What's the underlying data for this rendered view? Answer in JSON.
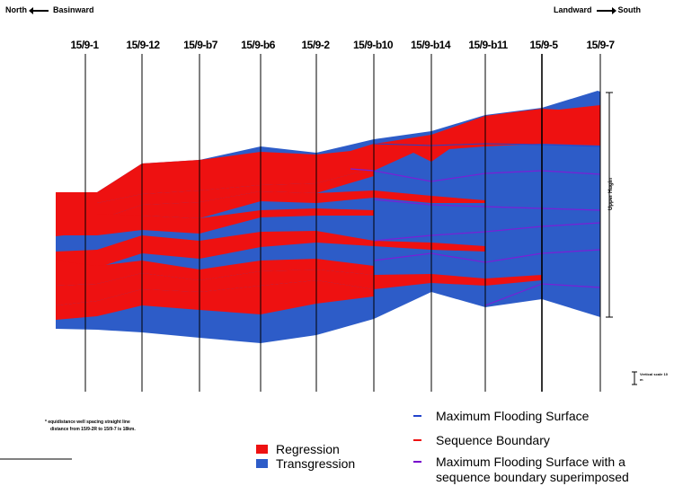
{
  "header": {
    "left_dir": "North",
    "left_label": "Basinward",
    "right_label": "Landward",
    "right_dir": "South"
  },
  "wells": [
    "15/9-1",
    "15/9-12",
    "15/9-b7",
    "15/9-b6",
    "15/9-2",
    "15/9-b10",
    "15/9-b14",
    "15/9-b11",
    "15/9-5",
    "15/9-7"
  ],
  "section_label": "Upper Hugin",
  "scale": {
    "label": "Vertical scale 10 m"
  },
  "note": {
    "line1": "* equidistance well spacing straight line",
    "line2": "distance from 15/9-2R to 15/9-7 is 18km."
  },
  "legend_fill": [
    {
      "label": "Regression",
      "color": "#ee1111"
    },
    {
      "label": "Transgression",
      "color": "#2d5cc8"
    }
  ],
  "legend_lines": [
    {
      "label": "Maximum Flooding Surface",
      "color": "#2244cc"
    },
    {
      "label": "Sequence Boundary",
      "color": "#ee1111"
    },
    {
      "label": "Maximum Flooding Surface with a",
      "color": "#7700cc"
    },
    {
      "label": "sequence boundary superimposed",
      "color": ""
    }
  ],
  "colors": {
    "regression": "#ee1111",
    "transgression": "#2d5cc8",
    "mfs_sb": "#7a1fd6"
  }
}
